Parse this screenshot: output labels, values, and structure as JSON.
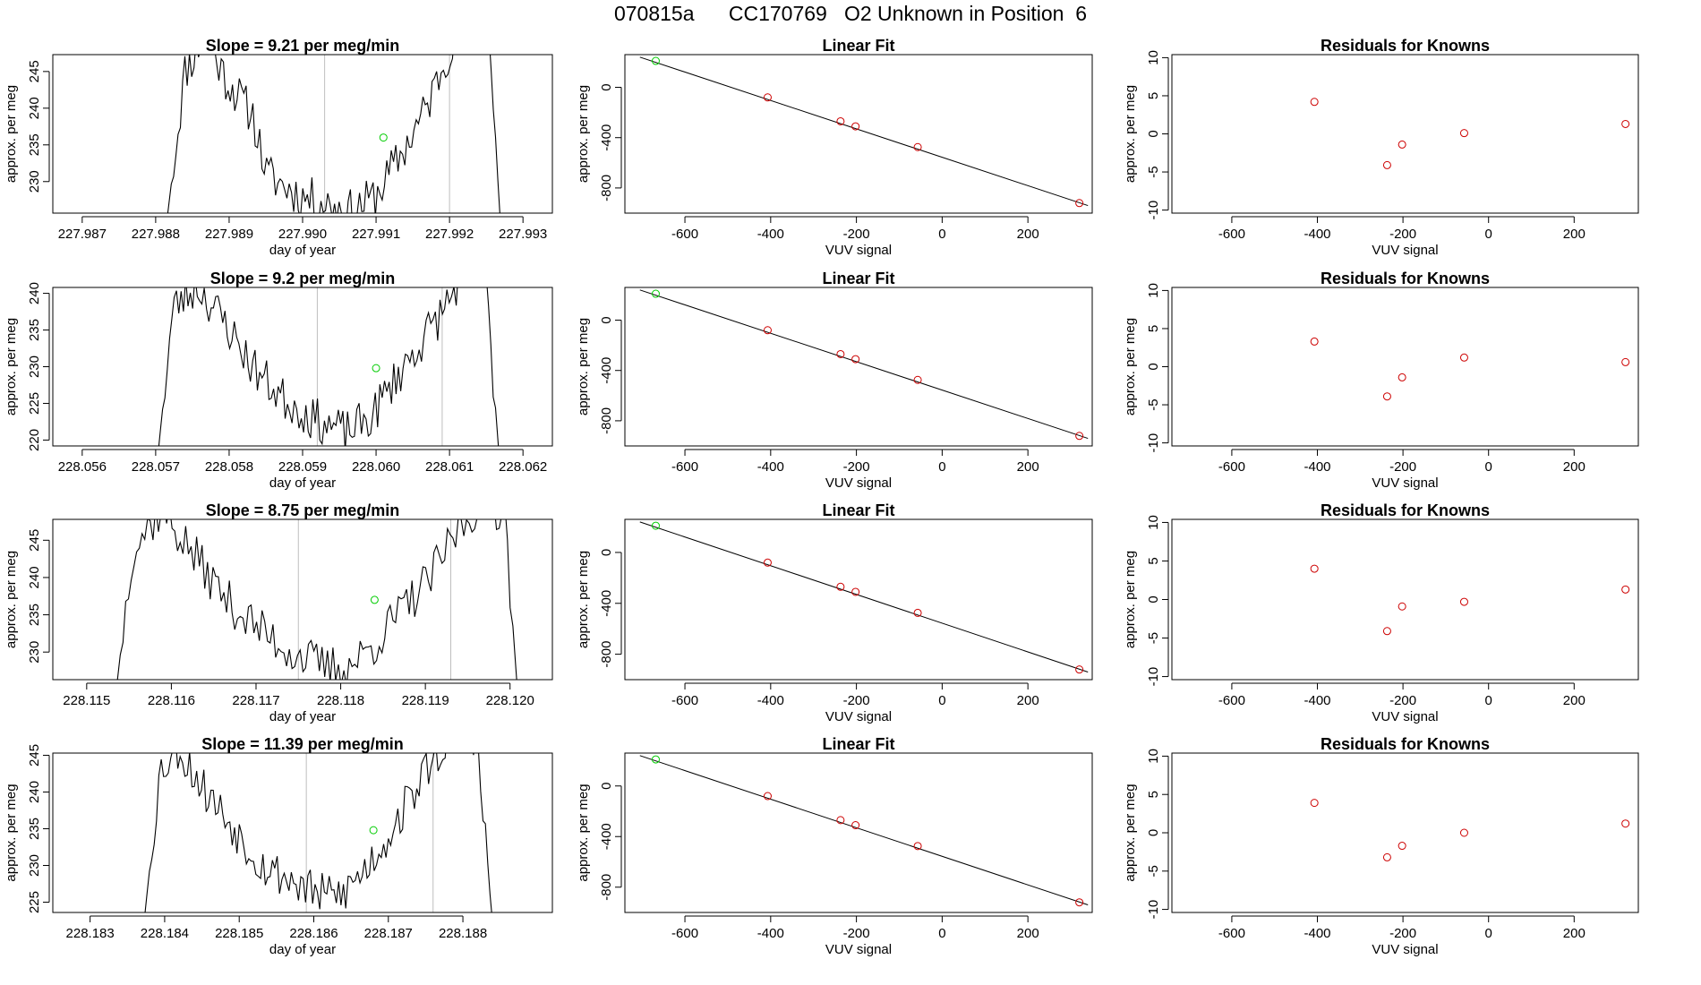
{
  "figure_title": "070815a      CC170769   O2 Unknown in Position  6",
  "colors": {
    "line": "#000000",
    "grid": "#bebebe",
    "standard_point": "#00cc00",
    "known_point": "#cd0000"
  },
  "chart_data": [
    {
      "type": "line",
      "panel": "time-series",
      "row": 1,
      "title": "Slope =  9.21  per meg/min",
      "xlabel": "day of year",
      "ylabel": "approx. per meg",
      "xlim": [
        227.9866,
        227.9934
      ],
      "ylim": [
        225.7,
        247.3
      ],
      "xticks": [
        227.987,
        227.988,
        227.989,
        227.99,
        227.991,
        227.992,
        227.993
      ],
      "xtick_labels": [
        "227.987",
        "227.988",
        "227.989",
        "227.990",
        "227.991",
        "227.992",
        "227.993"
      ],
      "yticks": [
        230,
        235,
        240,
        245
      ],
      "ytick_labels": [
        "230",
        "235",
        "240",
        "245"
      ],
      "vlines": [
        227.9903,
        227.992
      ],
      "marker": {
        "x": 227.9911,
        "y": 236
      },
      "trace_start": 227.98812,
      "trace_end": 227.99275,
      "trace_seed": 11,
      "trace_profile": [
        [
          0.0,
          222
        ],
        [
          0.06,
          245
        ],
        [
          0.12,
          250
        ],
        [
          0.18,
          244
        ],
        [
          0.26,
          239
        ],
        [
          0.3,
          231
        ],
        [
          0.4,
          228
        ],
        [
          0.48,
          227
        ],
        [
          0.55,
          226
        ],
        [
          0.62,
          228
        ],
        [
          0.7,
          234
        ],
        [
          0.77,
          240
        ],
        [
          0.82,
          246
        ],
        [
          0.87,
          252
        ],
        [
          0.95,
          253
        ],
        [
          1.0,
          215
        ]
      ]
    },
    {
      "type": "scatter",
      "panel": "linear-fit",
      "row": 1,
      "title": "Linear Fit",
      "xlabel": "VUV signal",
      "ylabel": "approx. per meg",
      "xlim": [
        -740,
        350
      ],
      "ylim": [
        -1000,
        260
      ],
      "xticks": [
        -600,
        -400,
        -200,
        0,
        200
      ],
      "xtick_labels": [
        "-600",
        "-400",
        "-200",
        "0",
        "200"
      ],
      "yticks": [
        -800,
        -400,
        0
      ],
      "ytick_labels": [
        "-800",
        "-400",
        "0"
      ],
      "fit_line": {
        "x": [
          -705,
          340
        ],
        "y": [
          240,
          -940
        ]
      },
      "standard": {
        "x": -668,
        "y": 210
      },
      "points": [
        {
          "x": -407,
          "y": -80
        },
        {
          "x": -237,
          "y": -270
        },
        {
          "x": -202,
          "y": -310
        },
        {
          "x": -57,
          "y": -475
        },
        {
          "x": 320,
          "y": -920
        }
      ]
    },
    {
      "type": "scatter",
      "panel": "residuals",
      "row": 1,
      "title": "Residuals for Knowns",
      "xlabel": "VUV signal",
      "ylabel": "approx. per meg",
      "xlim": [
        -740,
        350
      ],
      "ylim": [
        -10.4,
        10.4
      ],
      "xticks": [
        -600,
        -400,
        -200,
        0,
        200
      ],
      "xtick_labels": [
        "-600",
        "-400",
        "-200",
        "0",
        "200"
      ],
      "yticks": [
        -10,
        -5,
        0,
        5,
        10
      ],
      "ytick_labels": [
        "-10",
        "-5",
        "0",
        "5",
        "10"
      ],
      "points": [
        {
          "x": -407,
          "y": 4.2
        },
        {
          "x": -237,
          "y": -4.1
        },
        {
          "x": -202,
          "y": -1.4
        },
        {
          "x": -57,
          "y": 0.1
        },
        {
          "x": 320,
          "y": 1.3
        }
      ]
    },
    {
      "type": "line",
      "panel": "time-series",
      "row": 2,
      "title": "Slope =  9.2  per meg/min",
      "xlabel": "day of year",
      "ylabel": "approx. per meg",
      "xlim": [
        228.0556,
        228.0624
      ],
      "ylim": [
        219.2,
        240.8
      ],
      "xticks": [
        228.056,
        228.057,
        228.058,
        228.059,
        228.06,
        228.061,
        228.062
      ],
      "xtick_labels": [
        "228.056",
        "228.057",
        "228.058",
        "228.059",
        "228.060",
        "228.061",
        "228.062"
      ],
      "yticks": [
        220,
        225,
        230,
        235,
        240
      ],
      "ytick_labels": [
        "220",
        "225",
        "230",
        "235",
        "240"
      ],
      "vlines": [
        228.0592,
        228.0609
      ],
      "marker": {
        "x": 228.06,
        "y": 229.8
      },
      "trace_start": 228.057,
      "trace_end": 228.06172,
      "trace_seed": 23,
      "trace_profile": [
        [
          0.0,
          215
        ],
        [
          0.05,
          238
        ],
        [
          0.12,
          241
        ],
        [
          0.2,
          236
        ],
        [
          0.28,
          230
        ],
        [
          0.36,
          226
        ],
        [
          0.45,
          223
        ],
        [
          0.55,
          221
        ],
        [
          0.62,
          223
        ],
        [
          0.7,
          229
        ],
        [
          0.76,
          233
        ],
        [
          0.82,
          237
        ],
        [
          0.88,
          242
        ],
        [
          0.95,
          243
        ],
        [
          1.0,
          212
        ]
      ]
    },
    {
      "type": "scatter",
      "panel": "linear-fit",
      "row": 2,
      "title": "Linear Fit",
      "xlabel": "VUV signal",
      "ylabel": "approx. per meg",
      "xlim": [
        -740,
        350
      ],
      "ylim": [
        -1000,
        260
      ],
      "xticks": [
        -600,
        -400,
        -200,
        0,
        200
      ],
      "xtick_labels": [
        "-600",
        "-400",
        "-200",
        "0",
        "200"
      ],
      "yticks": [
        -800,
        -400,
        0
      ],
      "ytick_labels": [
        "-800",
        "-400",
        "0"
      ],
      "fit_line": {
        "x": [
          -705,
          340
        ],
        "y": [
          240,
          -940
        ]
      },
      "standard": {
        "x": -668,
        "y": 210
      },
      "points": [
        {
          "x": -407,
          "y": -80
        },
        {
          "x": -237,
          "y": -270
        },
        {
          "x": -202,
          "y": -310
        },
        {
          "x": -57,
          "y": -475
        },
        {
          "x": 320,
          "y": -920
        }
      ]
    },
    {
      "type": "scatter",
      "panel": "residuals",
      "row": 2,
      "title": "Residuals for Knowns",
      "xlabel": "VUV signal",
      "ylabel": "approx. per meg",
      "xlim": [
        -740,
        350
      ],
      "ylim": [
        -10.4,
        10.4
      ],
      "xticks": [
        -600,
        -400,
        -200,
        0,
        200
      ],
      "xtick_labels": [
        "-600",
        "-400",
        "-200",
        "0",
        "200"
      ],
      "yticks": [
        -10,
        -5,
        0,
        5,
        10
      ],
      "ytick_labels": [
        "-10",
        "-5",
        "0",
        "5",
        "10"
      ],
      "points": [
        {
          "x": -407,
          "y": 3.3
        },
        {
          "x": -237,
          "y": -3.9
        },
        {
          "x": -202,
          "y": -1.4
        },
        {
          "x": -57,
          "y": 1.2
        },
        {
          "x": 320,
          "y": 0.6
        }
      ]
    },
    {
      "type": "line",
      "panel": "time-series",
      "row": 3,
      "title": "Slope =  8.75  per meg/min",
      "xlabel": "day of year",
      "ylabel": "approx. per meg",
      "xlim": [
        228.1146,
        228.1205
      ],
      "ylim": [
        226.3,
        247.8
      ],
      "xticks": [
        228.115,
        228.116,
        228.117,
        228.118,
        228.119,
        228.12
      ],
      "xtick_labels": [
        "228.115",
        "228.116",
        "228.117",
        "228.118",
        "228.119",
        "228.120"
      ],
      "yticks": [
        230,
        235,
        240,
        245
      ],
      "ytick_labels": [
        "230",
        "235",
        "240",
        "245"
      ],
      "vlines": [
        228.1175,
        228.1193
      ],
      "marker": {
        "x": 228.1184,
        "y": 237
      },
      "trace_start": 228.1153,
      "trace_end": 228.12013,
      "trace_seed": 37,
      "trace_profile": [
        [
          0.0,
          220
        ],
        [
          0.05,
          244
        ],
        [
          0.12,
          249
        ],
        [
          0.2,
          243
        ],
        [
          0.28,
          237
        ],
        [
          0.36,
          233
        ],
        [
          0.44,
          230
        ],
        [
          0.52,
          228
        ],
        [
          0.58,
          228
        ],
        [
          0.64,
          231
        ],
        [
          0.7,
          235
        ],
        [
          0.78,
          240
        ],
        [
          0.84,
          246
        ],
        [
          0.9,
          250
        ],
        [
          0.96,
          249
        ],
        [
          1.0,
          218
        ]
      ]
    },
    {
      "type": "scatter",
      "panel": "linear-fit",
      "row": 3,
      "title": "Linear Fit",
      "xlabel": "VUV signal",
      "ylabel": "approx. per meg",
      "xlim": [
        -740,
        350
      ],
      "ylim": [
        -1000,
        260
      ],
      "xticks": [
        -600,
        -400,
        -200,
        0,
        200
      ],
      "xtick_labels": [
        "-600",
        "-400",
        "-200",
        "0",
        "200"
      ],
      "yticks": [
        -800,
        -400,
        0
      ],
      "ytick_labels": [
        "-800",
        "-400",
        "0"
      ],
      "fit_line": {
        "x": [
          -705,
          340
        ],
        "y": [
          240,
          -940
        ]
      },
      "standard": {
        "x": -668,
        "y": 210
      },
      "points": [
        {
          "x": -407,
          "y": -80
        },
        {
          "x": -237,
          "y": -270
        },
        {
          "x": -202,
          "y": -310
        },
        {
          "x": -57,
          "y": -475
        },
        {
          "x": 320,
          "y": -920
        }
      ]
    },
    {
      "type": "scatter",
      "panel": "residuals",
      "row": 3,
      "title": "Residuals for Knowns",
      "xlabel": "VUV signal",
      "ylabel": "approx. per meg",
      "xlim": [
        -740,
        350
      ],
      "ylim": [
        -10.4,
        10.4
      ],
      "xticks": [
        -600,
        -400,
        -200,
        0,
        200
      ],
      "xtick_labels": [
        "-600",
        "-400",
        "-200",
        "0",
        "200"
      ],
      "yticks": [
        -10,
        -5,
        0,
        5,
        10
      ],
      "ytick_labels": [
        "-10",
        "-5",
        "0",
        "5",
        "10"
      ],
      "points": [
        {
          "x": -407,
          "y": 4.0
        },
        {
          "x": -237,
          "y": -4.1
        },
        {
          "x": -202,
          "y": -0.9
        },
        {
          "x": -57,
          "y": -0.3
        },
        {
          "x": 320,
          "y": 1.3
        }
      ]
    },
    {
      "type": "line",
      "panel": "time-series",
      "row": 4,
      "title": "Slope =  11.39  per meg/min",
      "xlabel": "day of year",
      "ylabel": "approx. per meg",
      "xlim": [
        228.1825,
        228.1892
      ],
      "ylim": [
        223.6,
        245.3
      ],
      "xticks": [
        228.183,
        228.184,
        228.185,
        228.186,
        228.187,
        228.188
      ],
      "xtick_labels": [
        "228.183",
        "228.184",
        "228.185",
        "228.186",
        "228.187",
        "228.188"
      ],
      "yticks": [
        225,
        230,
        235,
        240,
        245
      ],
      "ytick_labels": [
        "225",
        "230",
        "235",
        "240",
        "245"
      ],
      "vlines": [
        228.1859,
        228.1876
      ],
      "marker": {
        "x": 228.1868,
        "y": 234.8
      },
      "trace_start": 228.1837,
      "trace_end": 228.18846,
      "trace_seed": 53,
      "trace_profile": [
        [
          0.0,
          220
        ],
        [
          0.05,
          243
        ],
        [
          0.1,
          246
        ],
        [
          0.18,
          240
        ],
        [
          0.26,
          235
        ],
        [
          0.34,
          230
        ],
        [
          0.42,
          228
        ],
        [
          0.5,
          226
        ],
        [
          0.56,
          226
        ],
        [
          0.62,
          229
        ],
        [
          0.68,
          233
        ],
        [
          0.74,
          238
        ],
        [
          0.8,
          243
        ],
        [
          0.86,
          247
        ],
        [
          0.94,
          248
        ],
        [
          1.0,
          215
        ]
      ]
    },
    {
      "type": "scatter",
      "panel": "linear-fit",
      "row": 4,
      "title": "Linear Fit",
      "xlabel": "VUV signal",
      "ylabel": "approx. per meg",
      "xlim": [
        -740,
        350
      ],
      "ylim": [
        -1000,
        260
      ],
      "xticks": [
        -600,
        -400,
        -200,
        0,
        200
      ],
      "xtick_labels": [
        "-600",
        "-400",
        "-200",
        "0",
        "200"
      ],
      "yticks": [
        -800,
        -400,
        0
      ],
      "ytick_labels": [
        "-800",
        "-400",
        "0"
      ],
      "fit_line": {
        "x": [
          -705,
          340
        ],
        "y": [
          240,
          -940
        ]
      },
      "standard": {
        "x": -668,
        "y": 210
      },
      "points": [
        {
          "x": -407,
          "y": -80
        },
        {
          "x": -237,
          "y": -270
        },
        {
          "x": -202,
          "y": -310
        },
        {
          "x": -57,
          "y": -475
        },
        {
          "x": 320,
          "y": -920
        }
      ]
    },
    {
      "type": "scatter",
      "panel": "residuals",
      "row": 4,
      "title": "Residuals for Knowns",
      "xlabel": "VUV signal",
      "ylabel": "approx. per meg",
      "xlim": [
        -740,
        350
      ],
      "ylim": [
        -10.4,
        10.4
      ],
      "xticks": [
        -600,
        -400,
        -200,
        0,
        200
      ],
      "xtick_labels": [
        "-600",
        "-400",
        "-200",
        "0",
        "200"
      ],
      "yticks": [
        -10,
        -5,
        0,
        5,
        10
      ],
      "ytick_labels": [
        "-10",
        "-5",
        "0",
        "5",
        "10"
      ],
      "points": [
        {
          "x": -407,
          "y": 3.9
        },
        {
          "x": -237,
          "y": -3.2
        },
        {
          "x": -202,
          "y": -1.7
        },
        {
          "x": -57,
          "y": 0.0
        },
        {
          "x": 320,
          "y": 1.2
        }
      ]
    }
  ]
}
